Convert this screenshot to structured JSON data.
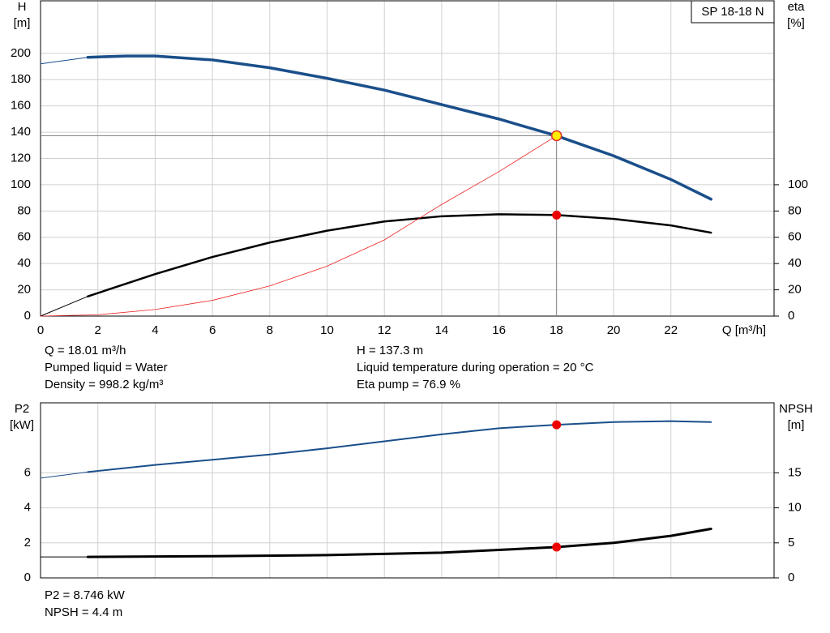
{
  "chart_data": [
    {
      "type": "line",
      "pump": "SP 18-18 N",
      "y_label": "H",
      "y_unit": "[m]",
      "y2_label": "eta",
      "y2_unit": "[%]",
      "x_label": "Q [m³/h]",
      "xlim": [
        0,
        25.6
      ],
      "xticks": [
        0,
        2,
        4,
        6,
        8,
        10,
        12,
        14,
        16,
        18,
        20,
        22
      ],
      "ylim": [
        0,
        240
      ],
      "yticks": [
        0,
        20,
        40,
        60,
        80,
        100,
        120,
        140,
        160,
        180,
        200
      ],
      "y2lim": [
        0,
        240
      ],
      "y2ticks": [
        0,
        20,
        40,
        60,
        80,
        100
      ],
      "series": [
        {
          "color": "#1a4f8a",
          "width": 1,
          "x": [
            0,
            1.65
          ],
          "values": [
            192,
            197
          ]
        },
        {
          "color": "#1a4f8a",
          "width": 3.5,
          "x": [
            1.65,
            3,
            4,
            6,
            8,
            10,
            12,
            14,
            16,
            18,
            20,
            22,
            23.4
          ],
          "values": [
            197,
            198,
            198,
            195,
            189,
            181,
            172,
            161,
            150,
            137.3,
            122,
            104,
            89
          ]
        },
        {
          "color": "#000000",
          "width": 1,
          "axis": "y2",
          "x": [
            0,
            1.65
          ],
          "values": [
            0,
            15
          ]
        },
        {
          "color": "#000000",
          "width": 2.5,
          "axis": "y2",
          "x": [
            1.65,
            4,
            6,
            8,
            10,
            12,
            14,
            16,
            18,
            20,
            22,
            23.4
          ],
          "values": [
            15,
            32,
            45,
            56,
            65,
            72,
            76,
            77.5,
            77,
            74,
            69,
            63.5
          ]
        },
        {
          "color": "#ee2222",
          "width": 0.8,
          "x": [
            0,
            2,
            4,
            6,
            8,
            10,
            12,
            14,
            16,
            18.01
          ],
          "values": [
            0,
            1,
            5,
            12,
            23,
            38,
            58,
            85,
            110,
            137.3
          ]
        }
      ],
      "points": [
        {
          "x": 18.01,
          "y": 137.3,
          "color": "#ffee00",
          "crosshair": true
        },
        {
          "x": 18.01,
          "y": 76.9,
          "color": "#ee0000",
          "axis": "y2"
        }
      ],
      "annotations": [
        [
          "Q = 18.01 m³/h",
          "Pumped liquid = Water",
          "Density = 998.2 kg/m³"
        ],
        [
          "H = 137.3 m",
          "Liquid temperature during operation = 20 °C",
          "Eta pump = 76.9 %"
        ]
      ]
    },
    {
      "type": "line",
      "y_label": "P2",
      "y_unit": "[kW]",
      "y2_label": "NPSH",
      "y2_unit": "[m]",
      "xlim": [
        0,
        25.6
      ],
      "xticks": [
        0,
        2,
        4,
        6,
        8,
        10,
        12,
        14,
        16,
        18,
        20,
        22
      ],
      "ylim": [
        0,
        10
      ],
      "yticks": [
        0,
        2,
        4,
        6
      ],
      "y2lim": [
        0,
        25
      ],
      "y2ticks": [
        0,
        5,
        10,
        15
      ],
      "series": [
        {
          "color": "#1a4f8a",
          "width": 1,
          "x": [
            0,
            1.65
          ],
          "values": [
            5.7,
            6.05
          ]
        },
        {
          "color": "#1a4f8a",
          "width": 2,
          "x": [
            1.65,
            4,
            6,
            8,
            10,
            12,
            14,
            16,
            18,
            20,
            22,
            23.4
          ],
          "values": [
            6.05,
            6.45,
            6.75,
            7.05,
            7.4,
            7.8,
            8.2,
            8.55,
            8.746,
            8.9,
            8.95,
            8.9
          ]
        },
        {
          "color": "#000000",
          "width": 1,
          "axis": "y2",
          "x": [
            0,
            1.65
          ],
          "values": [
            3.0,
            3.0
          ]
        },
        {
          "color": "#000000",
          "width": 3,
          "axis": "y2",
          "x": [
            1.65,
            6,
            10,
            14,
            18,
            20,
            22,
            23.4
          ],
          "values": [
            3.0,
            3.1,
            3.25,
            3.6,
            4.4,
            5.0,
            6.0,
            7.0
          ]
        }
      ],
      "points": [
        {
          "x": 18.01,
          "y": 8.746,
          "color": "#ee0000"
        },
        {
          "x": 18.01,
          "y": 4.4,
          "color": "#ee0000",
          "axis": "y2"
        }
      ],
      "annotations": [
        [
          "P2 = 8.746 kW",
          "NPSH = 4.4 m"
        ]
      ]
    }
  ]
}
